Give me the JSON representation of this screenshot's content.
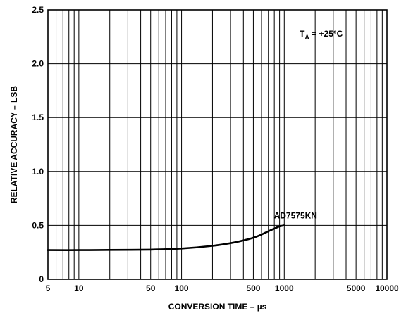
{
  "chart_data": {
    "type": "line",
    "xlabel": "CONVERSION TIME – µs",
    "ylabel": "RELATIVE ACCURACY – LSB",
    "x_scale": "log",
    "xlim": [
      5,
      10000
    ],
    "ylim": [
      0,
      2.5
    ],
    "x_tick_labels": [
      {
        "value": 5,
        "label": "5"
      },
      {
        "value": 10,
        "label": "10"
      },
      {
        "value": 50,
        "label": "50"
      },
      {
        "value": 100,
        "label": "100"
      },
      {
        "value": 500,
        "label": "500"
      },
      {
        "value": 1000,
        "label": "1000"
      },
      {
        "value": 5000,
        "label": "5000"
      },
      {
        "value": 10000,
        "label": "10000"
      }
    ],
    "y_tick_labels": [
      {
        "value": 0,
        "label": "0"
      },
      {
        "value": 0.5,
        "label": "0.5"
      },
      {
        "value": 1.0,
        "label": "1.0"
      },
      {
        "value": 1.5,
        "label": "1.5"
      },
      {
        "value": 2.0,
        "label": "2.0"
      },
      {
        "value": 2.5,
        "label": "2.5"
      }
    ],
    "grid": true,
    "series": [
      {
        "name": "AD7575KN",
        "x": [
          5,
          10,
          20,
          50,
          100,
          200,
          300,
          400,
          500,
          600,
          700,
          800,
          900,
          1000
        ],
        "y": [
          0.27,
          0.27,
          0.272,
          0.275,
          0.285,
          0.31,
          0.335,
          0.36,
          0.385,
          0.415,
          0.445,
          0.47,
          0.49,
          0.5
        ]
      }
    ],
    "annotations": [
      {
        "text_main": "T",
        "text_sub": "A",
        "text_rest": " = +25°C",
        "placement": "top-right"
      },
      {
        "text": "AD7575KN",
        "placement": "end-of-curve"
      }
    ]
  }
}
